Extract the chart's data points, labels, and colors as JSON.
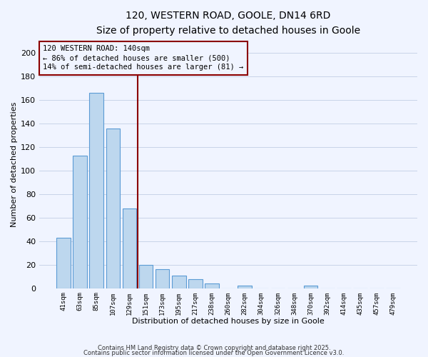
{
  "title": "120, WESTERN ROAD, GOOLE, DN14 6RD",
  "subtitle": "Size of property relative to detached houses in Goole",
  "xlabel": "Distribution of detached houses by size in Goole",
  "ylabel": "Number of detached properties",
  "categories": [
    "41sqm",
    "63sqm",
    "85sqm",
    "107sqm",
    "129sqm",
    "151sqm",
    "173sqm",
    "195sqm",
    "217sqm",
    "238sqm",
    "260sqm",
    "282sqm",
    "304sqm",
    "326sqm",
    "348sqm",
    "370sqm",
    "392sqm",
    "414sqm",
    "435sqm",
    "457sqm",
    "479sqm"
  ],
  "values": [
    43,
    113,
    166,
    136,
    68,
    20,
    16,
    11,
    8,
    4,
    0,
    2,
    0,
    0,
    0,
    2,
    0,
    0,
    0,
    0,
    0
  ],
  "bar_color": "#bdd7ee",
  "bar_edge_color": "#5b9bd5",
  "highlight_line_color": "#8b0000",
  "annotation_title": "120 WESTERN ROAD: 140sqm",
  "annotation_line1": "← 86% of detached houses are smaller (500)",
  "annotation_line2": "14% of semi-detached houses are larger (81) →",
  "ylim": [
    0,
    210
  ],
  "yticks": [
    0,
    20,
    40,
    60,
    80,
    100,
    120,
    140,
    160,
    180,
    200
  ],
  "footer1": "Contains HM Land Registry data © Crown copyright and database right 2025.",
  "footer2": "Contains public sector information licensed under the Open Government Licence v3.0.",
  "background_color": "#f0f4ff",
  "grid_color": "#c8d4e8",
  "title_fontsize": 10,
  "subtitle_fontsize": 9
}
